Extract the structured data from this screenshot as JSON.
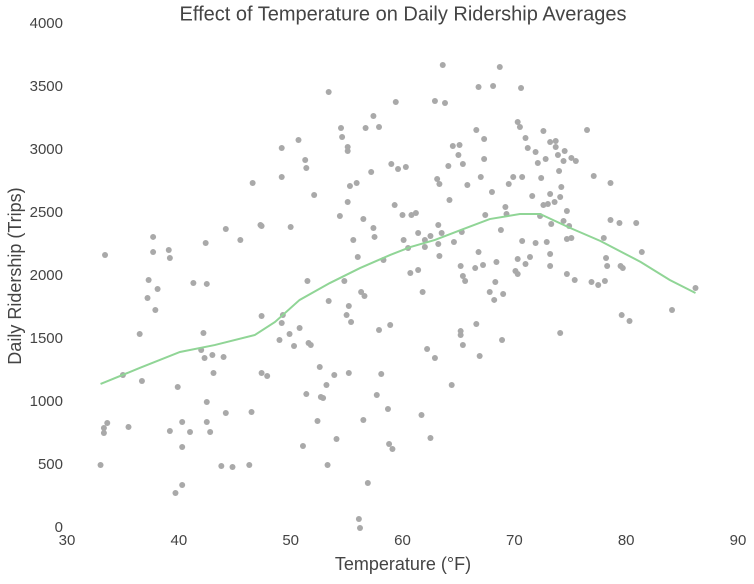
{
  "chart_data": {
    "type": "scatter",
    "title": "Effect of Temperature on Daily Ridership Averages",
    "xlabel": "Temperature (°F)",
    "ylabel": "Daily Ridership (Trips)",
    "xlim": [
      30,
      90
    ],
    "xticks": [
      30,
      40,
      50,
      60,
      70,
      80,
      90
    ],
    "ylim": [
      0,
      4000
    ],
    "yticks": [
      0,
      500,
      1000,
      1500,
      2000,
      2500,
      3000,
      3500,
      4000
    ],
    "grid": false,
    "series": [
      {
        "kind": "points",
        "color": "#a9a9a9",
        "x": [
          33.0,
          33.3,
          33.3,
          33.4,
          33.6,
          35.0,
          35.5,
          36.5,
          36.7,
          37.2,
          37.3,
          37.7,
          37.7,
          37.9,
          38.1,
          39.1,
          39.2,
          39.2,
          39.7,
          39.9,
          40.3,
          40.3,
          40.3,
          41.0,
          41.3,
          42.0,
          42.2,
          42.3,
          42.4,
          42.5,
          42.5,
          42.5,
          42.8,
          43.0,
          43.1,
          43.8,
          44.0,
          44.2,
          44.2,
          44.8,
          45.5,
          46.3,
          46.5,
          46.6,
          47.3,
          47.4,
          47.4,
          47.4,
          47.9,
          49.0,
          49.2,
          49.2,
          49.3,
          49.2,
          49.9,
          50.0,
          50.3,
          50.7,
          50.8,
          51.1,
          51.3,
          51.4,
          51.4,
          51.5,
          51.6,
          51.8,
          52.1,
          52.4,
          52.6,
          52.7,
          52.9,
          53.2,
          53.3,
          53.4,
          53.4,
          53.9,
          54.1,
          54.4,
          54.5,
          54.6,
          54.8,
          55.0,
          55.1,
          55.1,
          55.1,
          55.2,
          55.2,
          55.3,
          55.4,
          55.6,
          55.9,
          56.0,
          56.1,
          56.2,
          56.3,
          56.5,
          56.5,
          56.6,
          56.9,
          56.7,
          57.2,
          57.4,
          57.4,
          57.5,
          57.7,
          57.9,
          57.9,
          58.1,
          58.3,
          58.7,
          58.8,
          58.9,
          59.0,
          59.1,
          59.3,
          59.4,
          59.6,
          60.0,
          60.3,
          60.1,
          60.5,
          60.7,
          60.8,
          61.2,
          61.4,
          61.4,
          61.7,
          61.8,
          62.0,
          62.0,
          62.2,
          62.5,
          62.5,
          62.9,
          62.9,
          63.1,
          63.2,
          63.2,
          63.3,
          63.3,
          63.5,
          63.6,
          63.8,
          64.1,
          64.2,
          64.4,
          64.5,
          64.6,
          65.0,
          65.1,
          65.2,
          65.2,
          65.2,
          65.3,
          65.4,
          65.4,
          65.4,
          65.6,
          65.8,
          66.5,
          66.6,
          66.6,
          66.8,
          66.8,
          66.9,
          67.0,
          67.2,
          67.3,
          67.3,
          67.4,
          67.8,
          68.0,
          68.1,
          68.2,
          68.3,
          68.4,
          68.7,
          68.8,
          68.9,
          69.0,
          69.2,
          69.3,
          69.5,
          69.9,
          70.1,
          70.3,
          70.3,
          70.3,
          70.5,
          70.6,
          70.7,
          70.7,
          71.0,
          71.0,
          71.2,
          71.4,
          71.6,
          71.9,
          71.9,
          72.1,
          72.3,
          72.4,
          72.6,
          72.6,
          72.8,
          72.9,
          73.0,
          73.2,
          73.2,
          73.2,
          73.2,
          73.3,
          73.6,
          73.7,
          73.7,
          73.9,
          74.0,
          74.1,
          74.1,
          74.2,
          74.4,
          74.4,
          74.5,
          74.7,
          74.7,
          74.7,
          74.9,
          75.1,
          75.1,
          75.4,
          75.5,
          76.5,
          76.9,
          77.1,
          77.5,
          78.0,
          78.1,
          78.2,
          78.3,
          78.6,
          78.6,
          79.4,
          79.5,
          79.6,
          79.7,
          80.3,
          80.9,
          81.4,
          84.1,
          86.2
        ],
        "values": [
          500,
          794,
          754,
          2167,
          833,
          1214,
          802,
          1540,
          1167,
          1825,
          1968,
          2310,
          2190,
          1730,
          1897,
          2206,
          2143,
          770,
          278,
          1119,
          841,
          341,
          643,
          762,
          1944,
          1413,
          1548,
          1349,
          2262,
          1937,
          841,
          1000,
          762,
          1373,
          1230,
          492,
          1357,
          913,
          2373,
          484,
          2286,
          500,
          921,
          2738,
          2405,
          2397,
          1230,
          1683,
          1206,
          1492,
          2786,
          3016,
          1690,
          1627,
          1540,
          2389,
          1444,
          3079,
          1587,
          651,
          2921,
          2857,
          1063,
          1960,
          1468,
          1452,
          2643,
          849,
          1278,
          1040,
          1032,
          1135,
          500,
          3460,
          1802,
          1214,
          706,
          2476,
          3175,
          3103,
          1960,
          1690,
          2992,
          3024,
          2587,
          1762,
          1230,
          2714,
          1635,
          2286,
          2738,
          2151,
          71,
          0,
          1873,
          2452,
          857,
          1841,
          357,
          3175,
          2825,
          3270,
          2381,
          2310,
          1056,
          1571,
          3183,
          1222,
          2127,
          944,
          667,
          1611,
          2889,
          627,
          2563,
          3381,
          2849,
          2484,
          2865,
          2286,
          2222,
          2024,
          2484,
          2500,
          2048,
          2341,
          897,
          1873,
          2286,
          2230,
          1421,
          714,
          2317,
          1349,
          3389,
          2770,
          2405,
          2254,
          2159,
          2730,
          2341,
          3675,
          3373,
          2873,
          2603,
          1135,
          3032,
          2270,
          2960,
          3040,
          2079,
          1563,
          1532,
          2349,
          2000,
          1452,
          2889,
          1960,
          2722,
          2063,
          3159,
          1619,
          3500,
          2190,
          1365,
          2786,
          2087,
          2929,
          3087,
          2484,
          1873,
          2667,
          3508,
          1810,
          1952,
          2111,
          3659,
          2365,
          1492,
          1857,
          2548,
          2492,
          2730,
          2786,
          2040,
          2135,
          2016,
          3222,
          3183,
          3492,
          2278,
          2786,
          2095,
          3095,
          3016,
          2151,
          2635,
          2262,
          2984,
          2897,
          2476,
          2778,
          3151,
          2563,
          2929,
          2270,
          2571,
          2079,
          3063,
          2651,
          2175,
          2413,
          2587,
          3071,
          3024,
          2960,
          2833,
          2627,
          1548,
          2706,
          2437,
          2913,
          2992,
          2294,
          2016,
          2516,
          2397,
          2937,
          2302,
          1968,
          2913,
          3159,
          1952,
          2794,
          1929,
          2302,
          1960,
          2143,
          2079,
          2738,
          2444,
          2421,
          2079,
          1690,
          2063,
          1643,
          2421,
          2190,
          1730,
          1905
        ]
      },
      {
        "kind": "line",
        "color": "#90d596",
        "x": [
          33.0,
          36.5,
          40.1,
          43.2,
          46.8,
          48.6,
          50.8,
          53.5,
          56.2,
          58.9,
          60.7,
          62.9,
          65.2,
          67.8,
          70.5,
          72.3,
          75.0,
          77.7,
          81.3,
          83.9,
          86.2
        ],
        "values": [
          1143,
          1270,
          1397,
          1452,
          1532,
          1635,
          1810,
          1944,
          2063,
          2167,
          2230,
          2286,
          2365,
          2452,
          2492,
          2492,
          2381,
          2278,
          2111,
          1968,
          1865
        ]
      }
    ]
  }
}
